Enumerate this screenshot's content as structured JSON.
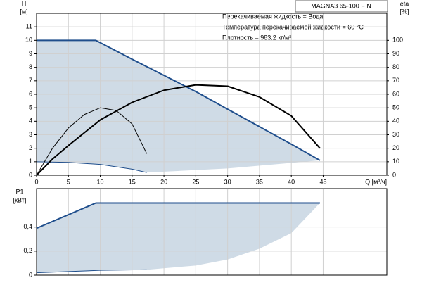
{
  "chart_data": [
    {
      "type": "line",
      "title": "MAGNA3 65-100 F N",
      "annotations": [
        "Перекачиваемая жидкость = Вода",
        "Температура перекачиваемой жидкости = 60 °C",
        "Плотность = 983.2 кг/м³"
      ],
      "xlabel": "Q [м³/ч]",
      "ylabel": "H",
      "yunit": "[м]",
      "y2label": "eta",
      "y2unit": "[%]",
      "xlim": [
        0,
        55
      ],
      "xticks": [
        0,
        5,
        10,
        15,
        20,
        25,
        30,
        35,
        40,
        45
      ],
      "ylim": [
        0,
        12
      ],
      "yticks": [
        0,
        1,
        2,
        3,
        4,
        5,
        6,
        7,
        8,
        9,
        10,
        11
      ],
      "y2lim": [
        0,
        120
      ],
      "y2ticks": [
        0,
        10,
        20,
        30,
        40,
        50,
        60,
        70,
        80,
        90,
        100
      ],
      "grid": true,
      "area": {
        "color": "#cfdbe6",
        "x": [
          17.3,
          30,
          44.5
        ],
        "values": [
          0.2,
          0.5,
          1.1
        ]
      },
      "series": [
        {
          "color": "#1f4e8c",
          "width": 2,
          "x": [
            0,
            9.3,
            15,
            20,
            25,
            30,
            35,
            40,
            44.5
          ],
          "values": [
            10,
            10,
            8.6,
            7.4,
            6.2,
            4.9,
            3.6,
            2.3,
            1.1
          ]
        },
        {
          "color": "#1f4e8c",
          "width": 1,
          "x": [
            0,
            5,
            10,
            15,
            17.3
          ],
          "values": [
            1.0,
            0.95,
            0.8,
            0.45,
            0.2
          ]
        },
        {
          "color": "#000000",
          "width": 2,
          "axis": "y2",
          "x": [
            0,
            2.5,
            5,
            10,
            15,
            20,
            25,
            30,
            35,
            40,
            44.5
          ],
          "values": [
            0,
            12,
            22,
            41,
            54,
            63,
            67,
            66,
            58,
            44,
            20
          ]
        },
        {
          "color": "#000000",
          "width": 1,
          "axis": "y2",
          "x": [
            0,
            2.5,
            5,
            7.5,
            10,
            12.5,
            15,
            17.3
          ],
          "values": [
            0,
            20,
            35,
            45,
            50,
            48,
            38,
            16
          ]
        }
      ]
    },
    {
      "type": "line",
      "ylabel": "P1",
      "yunit": "[кВт]",
      "ylim": [
        0,
        0.72
      ],
      "yticks": [
        0,
        {
          "value": 0.2,
          "label": "0,2"
        },
        {
          "value": 0.4,
          "label": "0,4"
        }
      ],
      "grid": true,
      "area": {
        "color": "#cfdbe6",
        "x": [
          17.3,
          25,
          30,
          35,
          40,
          44.5
        ],
        "values": [
          0.045,
          0.08,
          0.13,
          0.22,
          0.35,
          0.6
        ]
      },
      "series": [
        {
          "color": "#1f4e8c",
          "width": 2,
          "x": [
            0,
            9.3,
            44.5
          ],
          "values": [
            0.39,
            0.6,
            0.6
          ]
        },
        {
          "color": "#1f4e8c",
          "width": 1,
          "x": [
            0,
            5,
            10,
            17.3
          ],
          "values": [
            0.02,
            0.03,
            0.04,
            0.045
          ]
        }
      ]
    }
  ]
}
